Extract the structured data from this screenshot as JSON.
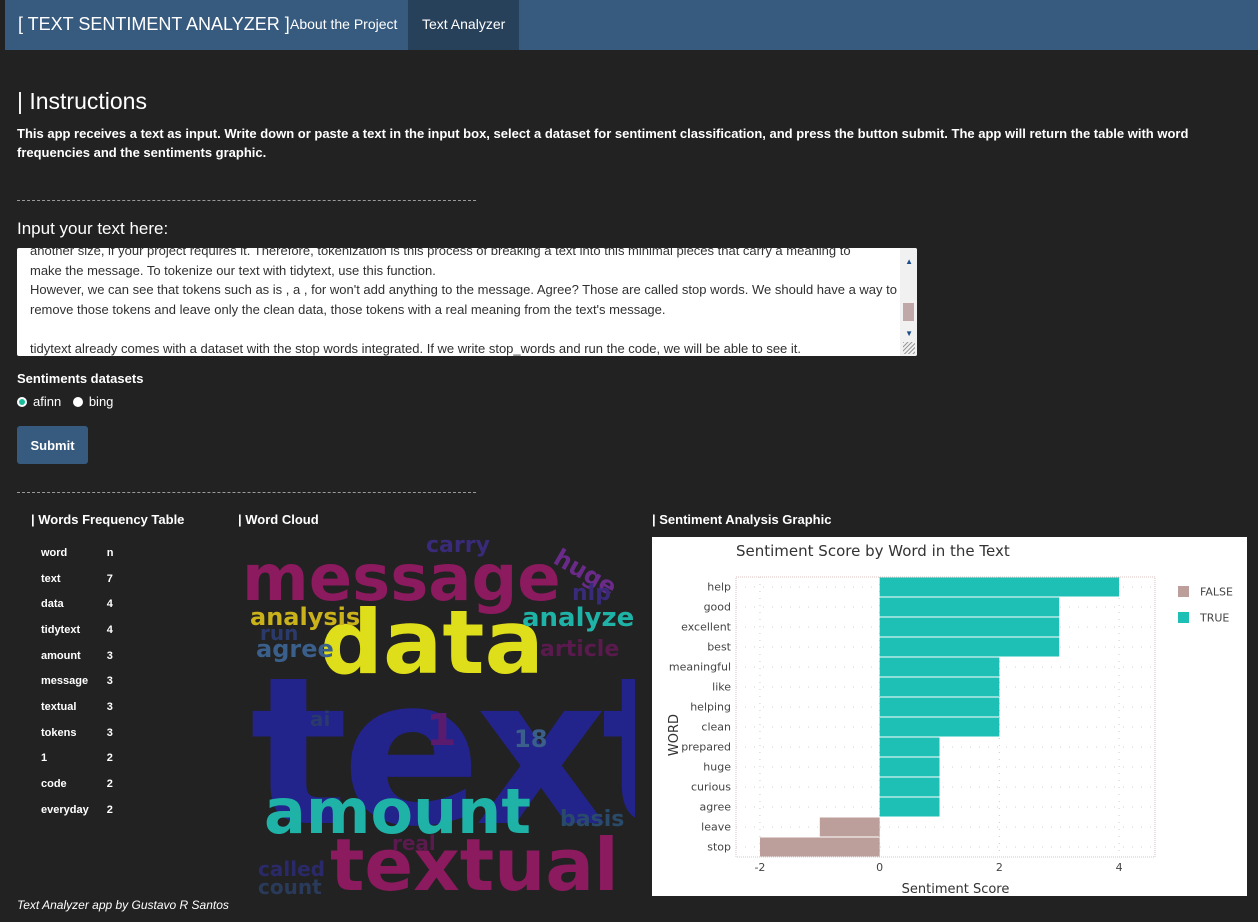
{
  "nav": {
    "brand": "[ TEXT SENTIMENT ANALYZER ]",
    "tabs": [
      "About the Project",
      "Text Analyzer"
    ],
    "active_tab": "Text Analyzer"
  },
  "instructions": {
    "title": "| Instructions",
    "body": "This app receives a text as input. Write down or paste a text in the input box, select a dataset for sentiment classification, and press the button submit. The app will return the table with word frequencies and the sentiments graphic."
  },
  "input": {
    "label": "Input your text here:",
    "lines": [
      "another size, if your project requires it. Therefore, tokenization is this process of breaking a text into this minimal pieces that carry a meaning to",
      "make the message. To tokenize our text with tidytext, use this function.",
      "However, we can see that tokens such as is , a , for won't add anything to the message. Agree? Those are called stop words. We should have a way to",
      "remove those tokens and leave only the clean data, those tokens with a real meaning from the text's message.",
      "",
      "tidytext already comes with a dataset with the stop words integrated. If we write stop_words and run the code, we will be able to see it."
    ]
  },
  "datasets": {
    "label": "Sentiments datasets",
    "options": [
      "afinn",
      "bing"
    ],
    "selected": "afinn"
  },
  "submit_label": "Submit",
  "freq_table": {
    "title": "| Words Frequency Table",
    "headers": [
      "word",
      "n"
    ],
    "rows": [
      [
        "text",
        "7"
      ],
      [
        "data",
        "4"
      ],
      [
        "tidytext",
        "4"
      ],
      [
        "amount",
        "3"
      ],
      [
        "message",
        "3"
      ],
      [
        "textual",
        "3"
      ],
      [
        "tokens",
        "3"
      ],
      [
        "1",
        "2"
      ],
      [
        "code",
        "2"
      ],
      [
        "everyday",
        "2"
      ]
    ]
  },
  "word_cloud": {
    "title": "| Word Cloud",
    "words": [
      {
        "text": "message",
        "color": "#8b1a5e"
      },
      {
        "text": "data",
        "color": "#dede1a"
      },
      {
        "text": "text",
        "color": "#23238c"
      },
      {
        "text": "amount",
        "color": "#1fb3a8"
      },
      {
        "text": "textual",
        "color": "#8b1a5e"
      },
      {
        "text": "analysis",
        "color": "#c9b21a"
      },
      {
        "text": "analyze",
        "color": "#1fb3a8"
      },
      {
        "text": "agree",
        "color": "#3a5f8a"
      },
      {
        "text": "carry",
        "color": "#3a2a7a"
      },
      {
        "text": "huge",
        "color": "#6a2a8a"
      },
      {
        "text": "nlp",
        "color": "#3a2a7a"
      },
      {
        "text": "article",
        "color": "#5a1a4e"
      },
      {
        "text": "run",
        "color": "#2a3a6a"
      },
      {
        "text": "ai",
        "color": "#2a3a6a"
      },
      {
        "text": "1",
        "color": "#5a1a6e"
      },
      {
        "text": "18",
        "color": "#3a5f8a"
      },
      {
        "text": "basis",
        "color": "#2a4a6a"
      },
      {
        "text": "real",
        "color": "#5a1a4e"
      },
      {
        "text": "called",
        "color": "#2a2a6a"
      },
      {
        "text": "count",
        "color": "#2a3a5a"
      }
    ]
  },
  "sentiment_section_title": "| Sentiment Analysis Graphic",
  "chart_data": {
    "type": "bar",
    "orientation": "horizontal",
    "title": "Sentiment Score by Word in the Text",
    "xlabel": "Sentiment Score",
    "ylabel": "WORD",
    "categories": [
      "help",
      "good",
      "excellent",
      "best",
      "meaningful",
      "like",
      "helping",
      "clean",
      "prepared",
      "huge",
      "curious",
      "agree",
      "leave",
      "stop"
    ],
    "values": [
      4,
      3,
      3,
      3,
      2,
      2,
      2,
      2,
      1,
      1,
      1,
      1,
      -1,
      -2
    ],
    "groups": [
      "TRUE",
      "TRUE",
      "TRUE",
      "TRUE",
      "TRUE",
      "TRUE",
      "TRUE",
      "TRUE",
      "TRUE",
      "TRUE",
      "TRUE",
      "TRUE",
      "FALSE",
      "FALSE"
    ],
    "xlim": [
      -2.4,
      4.6
    ],
    "xticks": [
      -2,
      0,
      2,
      4
    ],
    "legend": [
      {
        "name": "FALSE",
        "color": "#bc9e9a"
      },
      {
        "name": "TRUE",
        "color": "#1ebfb5"
      }
    ],
    "legend_position": "right",
    "grid": true
  },
  "footer": "Text Analyzer app by Gustavo R Santos"
}
